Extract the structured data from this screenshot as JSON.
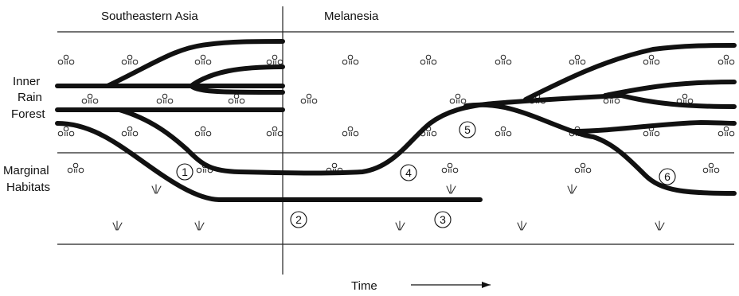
{
  "regions": {
    "left": "Southeastern Asia",
    "right": "Melanesia"
  },
  "habitats": {
    "inner_line1": "Inner",
    "inner_line2": "Rain",
    "inner_line3": "Forest",
    "marginal_line1": "Marginal",
    "marginal_line2": "Habitats"
  },
  "axis": {
    "time_label": "Time"
  },
  "markers": [
    "1",
    "2",
    "3",
    "4",
    "5",
    "6"
  ]
}
